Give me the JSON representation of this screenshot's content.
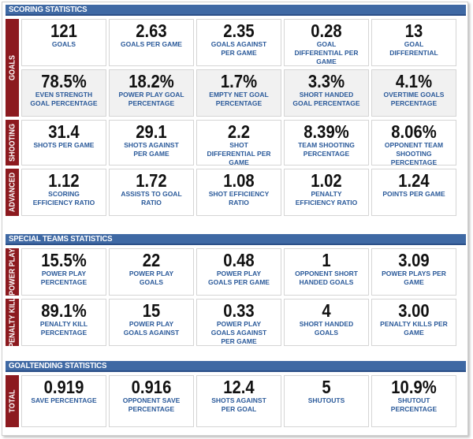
{
  "sections": [
    {
      "title": "SCORING STATISTICS",
      "groups": [
        {
          "label": "GOALS",
          "rows": [
            [
              {
                "value": "121",
                "label": "GOALS"
              },
              {
                "value": "2.63",
                "label": "GOALS PER GAME"
              },
              {
                "value": "2.35",
                "label": "GOALS AGAINST PER GAME"
              },
              {
                "value": "0.28",
                "label": "GOAL DIFFERENTIAL PER GAME"
              },
              {
                "value": "13",
                "label": "GOAL DIFFERENTIAL"
              }
            ],
            [
              {
                "value": "78.5%",
                "label": "EVEN STRENGTH GOAL PERCENTAGE"
              },
              {
                "value": "18.2%",
                "label": "POWER PLAY GOAL PERCENTAGE"
              },
              {
                "value": "1.7%",
                "label": "EMPTY NET GOAL PERCENTAGE"
              },
              {
                "value": "3.3%",
                "label": "SHORT HANDED GOAL PERCENTAGE"
              },
              {
                "value": "4.1%",
                "label": "OVERTIME GOALS PERCENTAGE"
              }
            ]
          ]
        },
        {
          "label": "SHOOTING",
          "rows": [
            [
              {
                "value": "31.4",
                "label": "SHOTS PER GAME"
              },
              {
                "value": "29.1",
                "label": "SHOTS AGAINST PER GAME"
              },
              {
                "value": "2.2",
                "label": "SHOT DIFFERENTIAL PER GAME"
              },
              {
                "value": "8.39%",
                "label": "TEAM SHOOTING PERCENTAGE"
              },
              {
                "value": "8.06%",
                "label": "OPPONENT TEAM SHOOTING PERCENTAGE"
              }
            ]
          ]
        },
        {
          "label": "ADVANCED",
          "rows": [
            [
              {
                "value": "1.12",
                "label": "SCORING EFFICIENCY RATIO"
              },
              {
                "value": "1.72",
                "label": "ASSISTS TO GOAL RATIO"
              },
              {
                "value": "1.08",
                "label": "SHOT EFFICIENCY RATIO"
              },
              {
                "value": "1.02",
                "label": "PENALTY EFFICIENCY RATIO"
              },
              {
                "value": "1.24",
                "label": "POINTS PER GAME"
              }
            ]
          ]
        }
      ]
    },
    {
      "title": "SPECIAL TEAMS STATISTICS",
      "groups": [
        {
          "label": "POWER PLAY",
          "rows": [
            [
              {
                "value": "15.5%",
                "label": "POWER PLAY PERCENTAGE"
              },
              {
                "value": "22",
                "label": "POWER PLAY GOALS"
              },
              {
                "value": "0.48",
                "label": "POWER PLAY GOALS PER GAME"
              },
              {
                "value": "1",
                "label": "OPPONENT SHORT HANDED GOALS"
              },
              {
                "value": "3.09",
                "label": "POWER PLAYS PER GAME"
              }
            ]
          ]
        },
        {
          "label": "PENALTY KILL",
          "rows": [
            [
              {
                "value": "89.1%",
                "label": "PENALTY KILL PERCENTAGE"
              },
              {
                "value": "15",
                "label": "POWER PLAY GOALS AGAINST"
              },
              {
                "value": "0.33",
                "label": "POWER PLAY GOALS AGAINST PER GAME"
              },
              {
                "value": "4",
                "label": "SHORT HANDED GOALS"
              },
              {
                "value": "3.00",
                "label": "PENALTY KILLS PER GAME"
              }
            ]
          ]
        }
      ]
    },
    {
      "title": "GOALTENDING STATISTICS",
      "groups": [
        {
          "label": "TOTAL",
          "rows": [
            [
              {
                "value": "0.919",
                "label": "SAVE PERCENTAGE"
              },
              {
                "value": "0.916",
                "label": "OPPONENT SAVE PERCENTAGE"
              },
              {
                "value": "12.4",
                "label": "SHOTS AGAINST PER GOAL"
              },
              {
                "value": "5",
                "label": "SHUTOUTS"
              },
              {
                "value": "10.9%",
                "label": "SHUTOUT PERCENTAGE"
              }
            ]
          ]
        }
      ]
    }
  ],
  "colors": {
    "header": "#3f69a4",
    "group_label": "#8c1a1f",
    "stat_label": "#2b5a9a"
  }
}
